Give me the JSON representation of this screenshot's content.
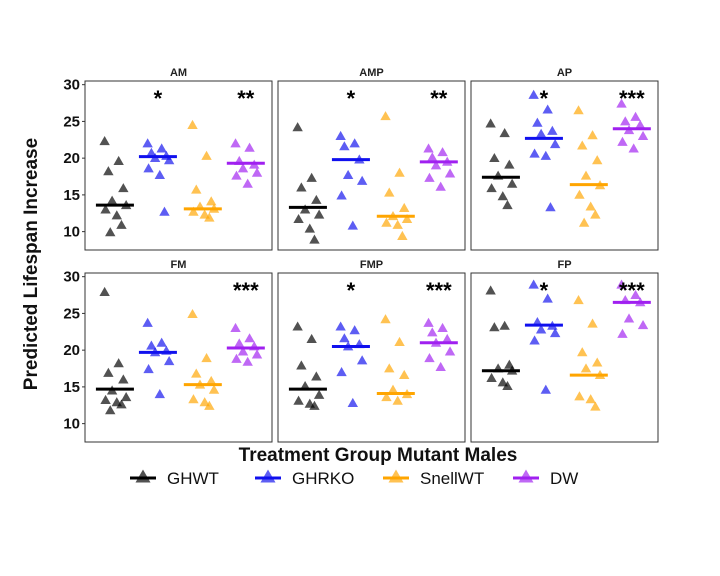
{
  "chart_data": {
    "type": "scatter",
    "xlabel": "Treatment Group Mutant Males",
    "ylabel": "Predicted Lifespan Increase",
    "ylim": [
      7.5,
      30.5
    ],
    "yticks": [
      10,
      15,
      20,
      25,
      30
    ],
    "grid": false,
    "legend_position": "bottom",
    "groups": [
      {
        "name": "GHWT",
        "color": "#000000"
      },
      {
        "name": "GHRKO",
        "color": "#1010ee"
      },
      {
        "name": "SnellWT",
        "color": "#ffa500"
      },
      {
        "name": "DW",
        "color": "#a020f0"
      }
    ],
    "panels": [
      {
        "title": "AM",
        "significance": [
          "",
          "*",
          "",
          "**"
        ],
        "medians": [
          13.6,
          20.2,
          13.1,
          19.3
        ],
        "points": [
          [
            22.3,
            19.6,
            18.2,
            15.9,
            14.2,
            13.6,
            13.0,
            12.2,
            10.9,
            9.9
          ],
          [
            22.0,
            21.3,
            20.7,
            20.3,
            20.0,
            19.7,
            18.6,
            17.7,
            12.7
          ],
          [
            24.5,
            20.3,
            15.7,
            14.1,
            13.4,
            13.1,
            12.7,
            12.3,
            11.9
          ],
          [
            22.0,
            21.4,
            19.6,
            19.1,
            18.6,
            18.0,
            17.6,
            16.5
          ]
        ]
      },
      {
        "title": "AMP",
        "significance": [
          "",
          "*",
          "",
          "**"
        ],
        "medians": [
          13.3,
          19.8,
          12.1,
          19.5
        ],
        "points": [
          [
            24.2,
            17.3,
            16.0,
            14.3,
            13.0,
            12.3,
            11.7,
            10.4,
            8.9
          ],
          [
            23.0,
            22.0,
            21.6,
            19.8,
            17.7,
            16.9,
            14.9,
            10.8
          ],
          [
            25.7,
            18.0,
            15.3,
            13.2,
            12.1,
            11.7,
            11.2,
            10.9,
            9.4
          ],
          [
            21.3,
            20.8,
            20.1,
            19.5,
            19.0,
            17.9,
            17.3,
            16.1
          ]
        ]
      },
      {
        "title": "AP",
        "significance": [
          "",
          "*",
          "",
          "***"
        ],
        "medians": [
          17.4,
          22.7,
          16.4,
          24.0
        ],
        "points": [
          [
            24.7,
            23.4,
            20.0,
            19.1,
            17.6,
            16.5,
            15.9,
            14.8,
            13.6
          ],
          [
            28.6,
            26.6,
            24.8,
            23.7,
            23.3,
            21.9,
            20.6,
            20.3,
            13.3
          ],
          [
            26.5,
            23.1,
            21.7,
            19.7,
            17.6,
            16.3,
            15.0,
            13.4,
            12.3,
            11.2
          ],
          [
            27.4,
            25.6,
            25.0,
            24.5,
            23.8,
            23.0,
            22.2,
            21.3
          ]
        ]
      },
      {
        "title": "FM",
        "significance": [
          "",
          "",
          "",
          "***"
        ],
        "medians": [
          14.7,
          19.7,
          15.3,
          20.3
        ],
        "points": [
          [
            27.9,
            18.2,
            16.9,
            16.0,
            14.5,
            13.6,
            13.2,
            12.9,
            12.6,
            11.8
          ],
          [
            23.7,
            21.0,
            20.6,
            19.9,
            19.7,
            18.5,
            17.4,
            14.0
          ],
          [
            24.9,
            18.9,
            16.8,
            15.8,
            15.3,
            14.6,
            13.3,
            12.9,
            12.4
          ],
          [
            23.0,
            21.6,
            20.9,
            20.5,
            19.8,
            19.4,
            18.8,
            18.4
          ]
        ]
      },
      {
        "title": "FMP",
        "significance": [
          "",
          "*",
          "",
          "***"
        ],
        "medians": [
          14.7,
          20.5,
          14.1,
          21.0
        ],
        "points": [
          [
            23.2,
            21.5,
            17.9,
            16.4,
            15.1,
            13.9,
            13.1,
            12.7,
            12.4
          ],
          [
            23.2,
            22.7,
            21.6,
            20.8,
            20.5,
            18.6,
            17.0,
            12.8
          ],
          [
            24.2,
            21.1,
            17.5,
            16.6,
            14.6,
            14.0,
            13.6,
            13.1
          ],
          [
            23.7,
            23.0,
            22.4,
            21.5,
            21.0,
            19.8,
            18.9,
            17.7
          ]
        ]
      },
      {
        "title": "FP",
        "significance": [
          "",
          "*",
          "",
          "***"
        ],
        "medians": [
          17.2,
          23.4,
          16.6,
          26.5
        ],
        "points": [
          [
            28.1,
            23.3,
            23.1,
            18.0,
            17.5,
            17.2,
            16.2,
            15.6,
            15.1
          ],
          [
            28.9,
            27.0,
            23.8,
            23.3,
            22.8,
            22.3,
            21.3,
            14.6
          ],
          [
            26.8,
            23.6,
            19.7,
            18.3,
            17.5,
            16.6,
            13.7,
            13.3,
            12.3
          ],
          [
            28.9,
            27.5,
            26.8,
            26.5,
            24.3,
            23.4,
            22.2
          ]
        ]
      }
    ]
  }
}
